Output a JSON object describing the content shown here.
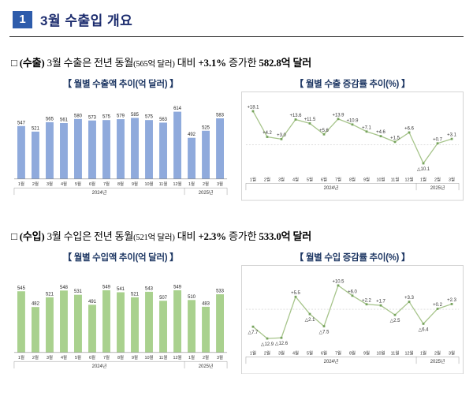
{
  "header": {
    "number": "1",
    "title": "3월 수출입 개요"
  },
  "export_summary": {
    "bullet": "□",
    "label": "(수출)",
    "t1": "3월 수출은 전년 동월",
    "paren": "(565억 달러)",
    "t2": "대비",
    "pct": "+3.1%",
    "t3": "증가한",
    "amount": "582.8억 달러"
  },
  "import_summary": {
    "bullet": "□",
    "label": "(수입)",
    "t1": "3월 수입은 전년 동월",
    "paren": "(521억 달러)",
    "t2": "대비",
    "pct": "+2.3%",
    "t3": "증가한",
    "amount": "533.0억 달러"
  },
  "chart_data": [
    {
      "type": "bar",
      "title": "【 월별 수출액 추이(억 달러) 】",
      "categories": [
        "1월",
        "2월",
        "3월",
        "4월",
        "5월",
        "6월",
        "7월",
        "8월",
        "9월",
        "10월",
        "11월",
        "12월",
        "1월",
        "2월",
        "3월"
      ],
      "values": [
        547,
        521,
        565,
        561,
        580,
        573,
        575,
        579,
        585,
        575,
        563,
        614,
        492,
        525,
        583
      ],
      "ylim": [
        300,
        650
      ],
      "color": "#8faadc",
      "year_groups": [
        {
          "label": "2024년",
          "start": 0,
          "end": 11
        },
        {
          "label": "2025년",
          "start": 12,
          "end": 14
        }
      ]
    },
    {
      "type": "line",
      "title": "【 월별 수출 증감률 추이(%) 】",
      "categories": [
        "1월",
        "2월",
        "3월",
        "4월",
        "5월",
        "6월",
        "7월",
        "8월",
        "9월",
        "10월",
        "11월",
        "12월",
        "1월",
        "2월",
        "3월"
      ],
      "values": [
        18.1,
        4.2,
        3.0,
        13.6,
        11.5,
        5.6,
        13.9,
        10.9,
        7.1,
        4.6,
        1.5,
        6.6,
        -10.1,
        0.7,
        3.1
      ],
      "labels": [
        "+18.1",
        "+4.2",
        "+3.0",
        "+13.6",
        "+11.5",
        "+5.6",
        "+13.9",
        "+10.9",
        "+7.1",
        "+4.6",
        "+1.5",
        "+6.6",
        "△10.1",
        "+0.7",
        "+3.1"
      ],
      "ylim": [
        -16,
        22
      ],
      "line_color": "#a6c48a",
      "marker_color": "#76a35c",
      "year_groups": [
        {
          "label": "2024년",
          "start": 0,
          "end": 11
        },
        {
          "label": "2025년",
          "start": 12,
          "end": 14
        }
      ]
    },
    {
      "type": "bar",
      "title": "【 월별 수입액 추이(억 달러) 】",
      "categories": [
        "1월",
        "2월",
        "3월",
        "4월",
        "5월",
        "6월",
        "7월",
        "8월",
        "9월",
        "10월",
        "11월",
        "12월",
        "1월",
        "2월",
        "3월"
      ],
      "values": [
        545,
        482,
        521,
        548,
        531,
        491,
        549,
        541,
        521,
        543,
        507,
        549,
        510,
        483,
        533
      ],
      "ylim": [
        300,
        600
      ],
      "color": "#a9d18e",
      "year_groups": [
        {
          "label": "2024년",
          "start": 0,
          "end": 11
        },
        {
          "label": "2025년",
          "start": 12,
          "end": 14
        }
      ]
    },
    {
      "type": "line",
      "title": "【 월별 수입 증감률 추이(%) 】",
      "categories": [
        "1월",
        "2월",
        "3월",
        "4월",
        "5월",
        "6월",
        "7월",
        "8월",
        "9월",
        "10월",
        "11월",
        "12월",
        "1월",
        "2월",
        "3월"
      ],
      "values": [
        -7.7,
        -12.9,
        -12.6,
        5.5,
        -2.1,
        -7.5,
        10.5,
        6.0,
        2.2,
        1.7,
        -2.5,
        3.3,
        -6.4,
        0.2,
        2.3
      ],
      "labels": [
        "△7.7",
        "△12.9",
        "△12.6",
        "+5.5",
        "△2.1",
        "△7.5",
        "+10.5",
        "+6.0",
        "+2.2",
        "+1.7",
        "△2.5",
        "+3.3",
        "△6.4",
        "+0.2",
        "+2.3"
      ],
      "ylim": [
        -17,
        14
      ],
      "line_color": "#a6c48a",
      "marker_color": "#76a35c",
      "year_groups": [
        {
          "label": "2024년",
          "start": 0,
          "end": 11
        },
        {
          "label": "2025년",
          "start": 12,
          "end": 14
        }
      ]
    }
  ]
}
